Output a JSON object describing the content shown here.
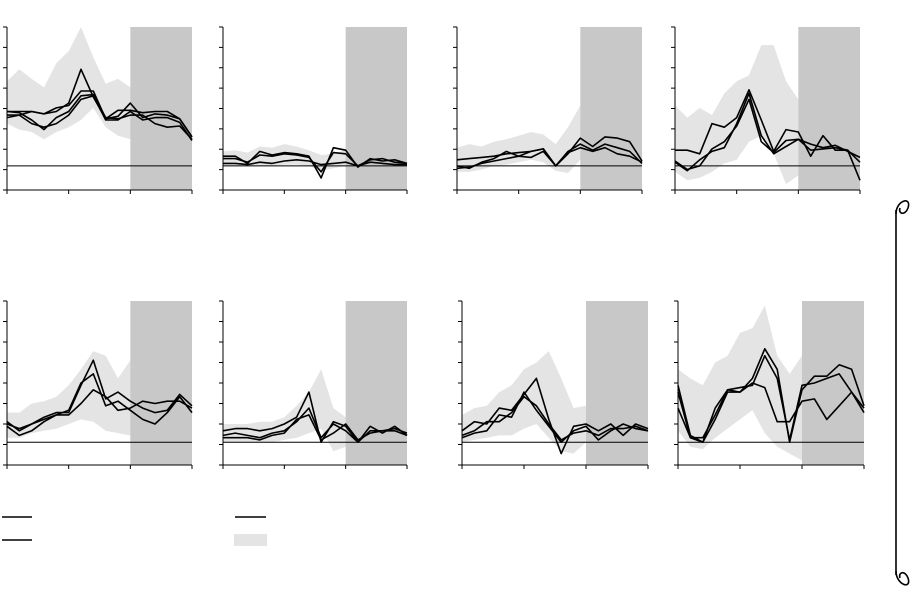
{
  "chart_data": [
    {
      "type": "line",
      "shaded_region": [
        10,
        15
      ],
      "zero_line": 0,
      "x": [
        0,
        1,
        2,
        3,
        4,
        5,
        6,
        7,
        8,
        9,
        10,
        11,
        12,
        13,
        14,
        15
      ],
      "ylim": [
        -2,
        11.5
      ],
      "band": {
        "upper": [
          7,
          8,
          7.2,
          6.5,
          8.5,
          9.5,
          11.5,
          9,
          6.8,
          7.2,
          6.5,
          7,
          6,
          5.2,
          5.5,
          4
        ],
        "lower": [
          3.5,
          3,
          2.8,
          2.2,
          2.8,
          3.2,
          3.8,
          4.8,
          3.2,
          2.5,
          2.2,
          2.4,
          2.2,
          2.5,
          2.5,
          2
        ]
      },
      "series": [
        {
          "values": [
            4.5,
            4.4,
            3.8,
            3,
            4,
            4.5,
            5.8,
            5.9,
            4,
            3.9,
            4.2,
            4.2,
            3.5,
            3.2,
            3.3,
            2.2
          ]
        },
        {
          "values": [
            4.2,
            4.2,
            4.5,
            4.3,
            4.8,
            5,
            6.2,
            6.2,
            3.9,
            4.6,
            4.6,
            4.4,
            4.5,
            4.5,
            3.9,
            2.4
          ]
        },
        {
          "values": [
            4,
            4.2,
            3.5,
            3.2,
            3.5,
            4.2,
            5.5,
            5.8,
            3.8,
            3.8,
            4.5,
            3.8,
            4,
            4,
            3.6,
            2.1
          ]
        },
        {
          "values": [
            4.5,
            4.5,
            4.5,
            4.3,
            4.5,
            5.2,
            8,
            5.7,
            3.9,
            4.1,
            5.2,
            4,
            4.3,
            4.2,
            3.9,
            2.4
          ]
        }
      ]
    },
    {
      "type": "line",
      "shaded_region": [
        10,
        15
      ],
      "zero_line": 0,
      "x": [
        0,
        1,
        2,
        3,
        4,
        5,
        6,
        7,
        8,
        9,
        10,
        11,
        12,
        13,
        14,
        15
      ],
      "ylim": [
        -2,
        11.5
      ],
      "band": {
        "upper": [
          1.2,
          1.3,
          1.1,
          1.6,
          1.5,
          1.8,
          1.6,
          1.3,
          0.9,
          1,
          1.3,
          1.2,
          1.1,
          1,
          1,
          0.8
        ],
        "lower": [
          0,
          0,
          0,
          0,
          0,
          0.1,
          0.1,
          0,
          -0.4,
          -0.2,
          0,
          -0.1,
          -0.1,
          0,
          0,
          0
        ]
      },
      "series": [
        {
          "values": [
            0.8,
            0.8,
            0.2,
            1.2,
            0.9,
            1.1,
            1,
            0.8,
            -1,
            1.5,
            1.3,
            -0.1,
            0.6,
            0.4,
            0.5,
            0.2
          ]
        },
        {
          "values": [
            0.6,
            0.6,
            0.3,
            0.9,
            0.8,
            1,
            0.9,
            0.7,
            -0.5,
            1.1,
            1,
            0,
            0.5,
            0.6,
            0.3,
            0.2
          ]
        },
        {
          "values": [
            0.2,
            0.2,
            0.1,
            0.3,
            0.2,
            0.4,
            0.5,
            0.4,
            0.1,
            0.2,
            0.3,
            0,
            0.3,
            0.2,
            0.1,
            0.1
          ]
        }
      ]
    },
    {
      "type": "line",
      "shaded_region": [
        10,
        15
      ],
      "zero_line": 0,
      "x": [
        0,
        1,
        2,
        3,
        4,
        5,
        6,
        7,
        8,
        9,
        10,
        11,
        12,
        13,
        14,
        15
      ],
      "ylim": [
        -2,
        11.5
      ],
      "band": {
        "upper": [
          1.5,
          1.8,
          1.6,
          2,
          2.2,
          2.5,
          2.8,
          2.6,
          1.8,
          3.2,
          5,
          3,
          5.5,
          5,
          4.8,
          2.5
        ],
        "lower": [
          -0.5,
          -0.5,
          -0.3,
          0,
          0.1,
          0.3,
          0.5,
          0.3,
          -0.4,
          -0.6,
          0.5,
          0.6,
          0.5,
          0.4,
          0.2,
          0
        ]
      },
      "series": [
        {
          "values": [
            0.5,
            0.6,
            0.7,
            0.8,
            1,
            1.1,
            1.2,
            1.4,
            0,
            1,
            2.3,
            1.6,
            2.4,
            2.3,
            2,
            0.4
          ]
        },
        {
          "values": [
            -0.2,
            -0.1,
            0.2,
            0.4,
            0.6,
            0.8,
            0.7,
            1.2,
            0,
            1.2,
            1.8,
            1.3,
            1.8,
            1.5,
            1.2,
            0.2
          ]
        },
        {
          "values": [
            0,
            -0.2,
            0.3,
            0.6,
            1.2,
            0.8,
            1.2,
            1.4,
            0,
            1.1,
            1.5,
            1.2,
            1.5,
            1,
            0.8,
            0.3
          ]
        }
      ]
    },
    {
      "type": "line",
      "shaded_region": [
        10,
        15
      ],
      "zero_line": 0,
      "x": [
        0,
        1,
        2,
        3,
        4,
        5,
        6,
        7,
        8,
        9,
        10,
        11,
        12,
        13,
        14,
        15
      ],
      "ylim": [
        -2,
        11.5
      ],
      "band": {
        "upper": [
          5,
          4,
          4.8,
          4.2,
          6,
          7,
          7.5,
          10,
          10,
          7,
          5.5,
          6,
          5.5,
          4.5,
          4,
          3
        ],
        "lower": [
          -0.5,
          -1.2,
          -1,
          -0.5,
          0.2,
          0.5,
          2,
          2.5,
          1,
          -1.5,
          -0.8,
          -0.5,
          -1.5,
          -1,
          -1.3,
          -1.5
        ]
      },
      "series": [
        {
          "values": [
            1.3,
            1.3,
            1,
            3.5,
            3.2,
            4,
            6.3,
            3.8,
            1.2,
            3,
            2.8,
            0.8,
            2.5,
            1.3,
            1.3,
            -1.2
          ]
        },
        {
          "values": [
            0.3,
            -0.4,
            0.5,
            1.2,
            1.5,
            3.5,
            6,
            2.5,
            1,
            1.6,
            2.2,
            1.3,
            1.4,
            1.5,
            1.3,
            0.3
          ]
        },
        {
          "values": [
            0.4,
            -0.3,
            0,
            1.4,
            2,
            3.3,
            5.5,
            2,
            1.1,
            2.1,
            2.2,
            1.8,
            1.5,
            1.7,
            1.2,
            0.7
          ]
        }
      ]
    },
    {
      "type": "line",
      "shaded_region": [
        10,
        15
      ],
      "zero_line": 0,
      "x": [
        0,
        1,
        2,
        3,
        4,
        5,
        6,
        7,
        8,
        9,
        10,
        11,
        12,
        13,
        14,
        15
      ],
      "ylim": [
        -1,
        6.2
      ],
      "band": {
        "upper": [
          1.3,
          1.3,
          1.7,
          1.8,
          2,
          2.5,
          3.2,
          4,
          3.8,
          2.8,
          3.6,
          3.8,
          3,
          4,
          3.5,
          4
        ],
        "lower": [
          0.2,
          0.2,
          0.4,
          0.5,
          0.6,
          0.8,
          1,
          0.9,
          0.5,
          0.4,
          0.3,
          0.1,
          0.1,
          0.2,
          0.4,
          0.4
        ]
      },
      "series": [
        {
          "values": [
            0.9,
            0.5,
            0.8,
            1.1,
            1.3,
            1.3,
            2.5,
            3.6,
            1.9,
            2.2,
            1.8,
            1.5,
            1.3,
            1.4,
            2.1,
            1.6
          ]
        },
        {
          "values": [
            0.7,
            0.3,
            0.5,
            0.9,
            1.2,
            1.2,
            1.7,
            2.3,
            2,
            1.4,
            1.5,
            1.8,
            1.7,
            1.8,
            1.8,
            1.5
          ]
        },
        {
          "values": [
            0.8,
            0.6,
            0.8,
            1,
            1.2,
            1.4,
            2.6,
            3,
            1.6,
            1.8,
            1.4,
            1,
            0.8,
            1.3,
            2,
            1.3
          ]
        }
      ]
    },
    {
      "type": "line",
      "shaded_region": [
        10,
        15
      ],
      "zero_line": 0,
      "x": [
        0,
        1,
        2,
        3,
        4,
        5,
        6,
        7,
        8,
        9,
        10,
        11,
        12,
        13,
        14,
        15
      ],
      "ylim": [
        -1,
        6.2
      ],
      "band": {
        "upper": [
          0.8,
          0.8,
          0.8,
          0.9,
          0.9,
          1.1,
          1.6,
          2.2,
          3.2,
          1.5,
          1.1,
          1,
          1,
          1,
          0.9,
          0.8
        ],
        "lower": [
          0,
          0,
          0,
          0,
          0,
          0.1,
          0.2,
          0.4,
          0.6,
          -0.4,
          -0.2,
          0,
          0,
          0,
          0,
          0
        ]
      },
      "series": [
        {
          "values": [
            0.5,
            0.6,
            0.6,
            0.5,
            0.6,
            0.8,
            1.1,
            2.2,
            0,
            0.9,
            0.7,
            0,
            0.7,
            0.4,
            0.7,
            0.3
          ]
        },
        {
          "values": [
            0.3,
            0.4,
            0.3,
            0.2,
            0.4,
            0.5,
            0.9,
            1.5,
            0.2,
            0.8,
            0.5,
            0,
            0.5,
            0.5,
            0.6,
            0.4
          ]
        },
        {
          "values": [
            0.2,
            0.2,
            0.2,
            0.1,
            0.3,
            0.4,
            1,
            1.2,
            0.1,
            0.4,
            0.8,
            0.1,
            0.4,
            0.5,
            0.5,
            0.3
          ]
        }
      ]
    },
    {
      "type": "line",
      "shaded_region": [
        10,
        15
      ],
      "zero_line": 0,
      "x": [
        0,
        1,
        2,
        3,
        4,
        5,
        6,
        7,
        8,
        9,
        10,
        11,
        12,
        13,
        14,
        15
      ],
      "ylim": [
        -1,
        6.2
      ],
      "band": {
        "upper": [
          1.2,
          1.5,
          1.6,
          2.2,
          2.5,
          3.2,
          3.5,
          4,
          2.8,
          1.5,
          1.6,
          1.7,
          1.8,
          1.6,
          1.5,
          1.3
        ],
        "lower": [
          0,
          0.1,
          0.2,
          0.3,
          0.3,
          0.6,
          0.8,
          0.2,
          -0.4,
          -0.5,
          0,
          0.1,
          0.1,
          0.2,
          0.1,
          0.1
        ]
      },
      "series": [
        {
          "values": [
            0.5,
            0.9,
            0.8,
            1.5,
            1.4,
            2.1,
            2.8,
            1,
            -0.5,
            0.7,
            0.8,
            0.5,
            0.8,
            0.3,
            0.8,
            0.6
          ]
        },
        {
          "values": [
            0.3,
            0.5,
            0.9,
            0.9,
            1.3,
            2,
            1.6,
            0.8,
            0.1,
            0.4,
            0.5,
            0.3,
            0.6,
            0.6,
            0.7,
            0.5
          ]
        },
        {
          "values": [
            0.2,
            0.4,
            0.5,
            1.2,
            1.1,
            2.2,
            1.4,
            0.7,
            0,
            0.5,
            0.7,
            0.1,
            0.5,
            0.8,
            0.6,
            0.5
          ]
        }
      ]
    },
    {
      "type": "line",
      "shaded_region": [
        10,
        15
      ],
      "zero_line": 0,
      "x": [
        0,
        1,
        2,
        3,
        4,
        5,
        6,
        7,
        8,
        9,
        10,
        11,
        12,
        13,
        14,
        15
      ],
      "ylim": [
        -1,
        6.2
      ],
      "band": {
        "upper": [
          3.2,
          2.8,
          2.5,
          3.5,
          3.8,
          4.8,
          5,
          6,
          3.8,
          3,
          3.8,
          4.5,
          3.5,
          4.5,
          4,
          3.5
        ],
        "lower": [
          0.5,
          -0.2,
          -0.3,
          0.2,
          0.6,
          1,
          1.4,
          0.4,
          -0.2,
          -0.5,
          -0.8,
          -0.5,
          -0.3,
          0.2,
          0.3,
          0.5
        ]
      },
      "series": [
        {
          "values": [
            2.5,
            0.3,
            0,
            1.5,
            2.3,
            2.4,
            2.5,
            3.8,
            2.8,
            0.1,
            2.5,
            2.6,
            2.8,
            3,
            2.2,
            1.5
          ]
        },
        {
          "values": [
            2.2,
            0.2,
            0.2,
            1.2,
            2.3,
            2.2,
            2.8,
            4.1,
            3.2,
            0,
            2.3,
            2.9,
            2.9,
            3.4,
            3.2,
            1.6
          ]
        },
        {
          "values": [
            1.5,
            0.2,
            0,
            1,
            2.2,
            2.2,
            2.6,
            2.4,
            0.9,
            0.9,
            1.8,
            1.9,
            1,
            1.6,
            2.2,
            1.3
          ]
        }
      ]
    }
  ]
}
